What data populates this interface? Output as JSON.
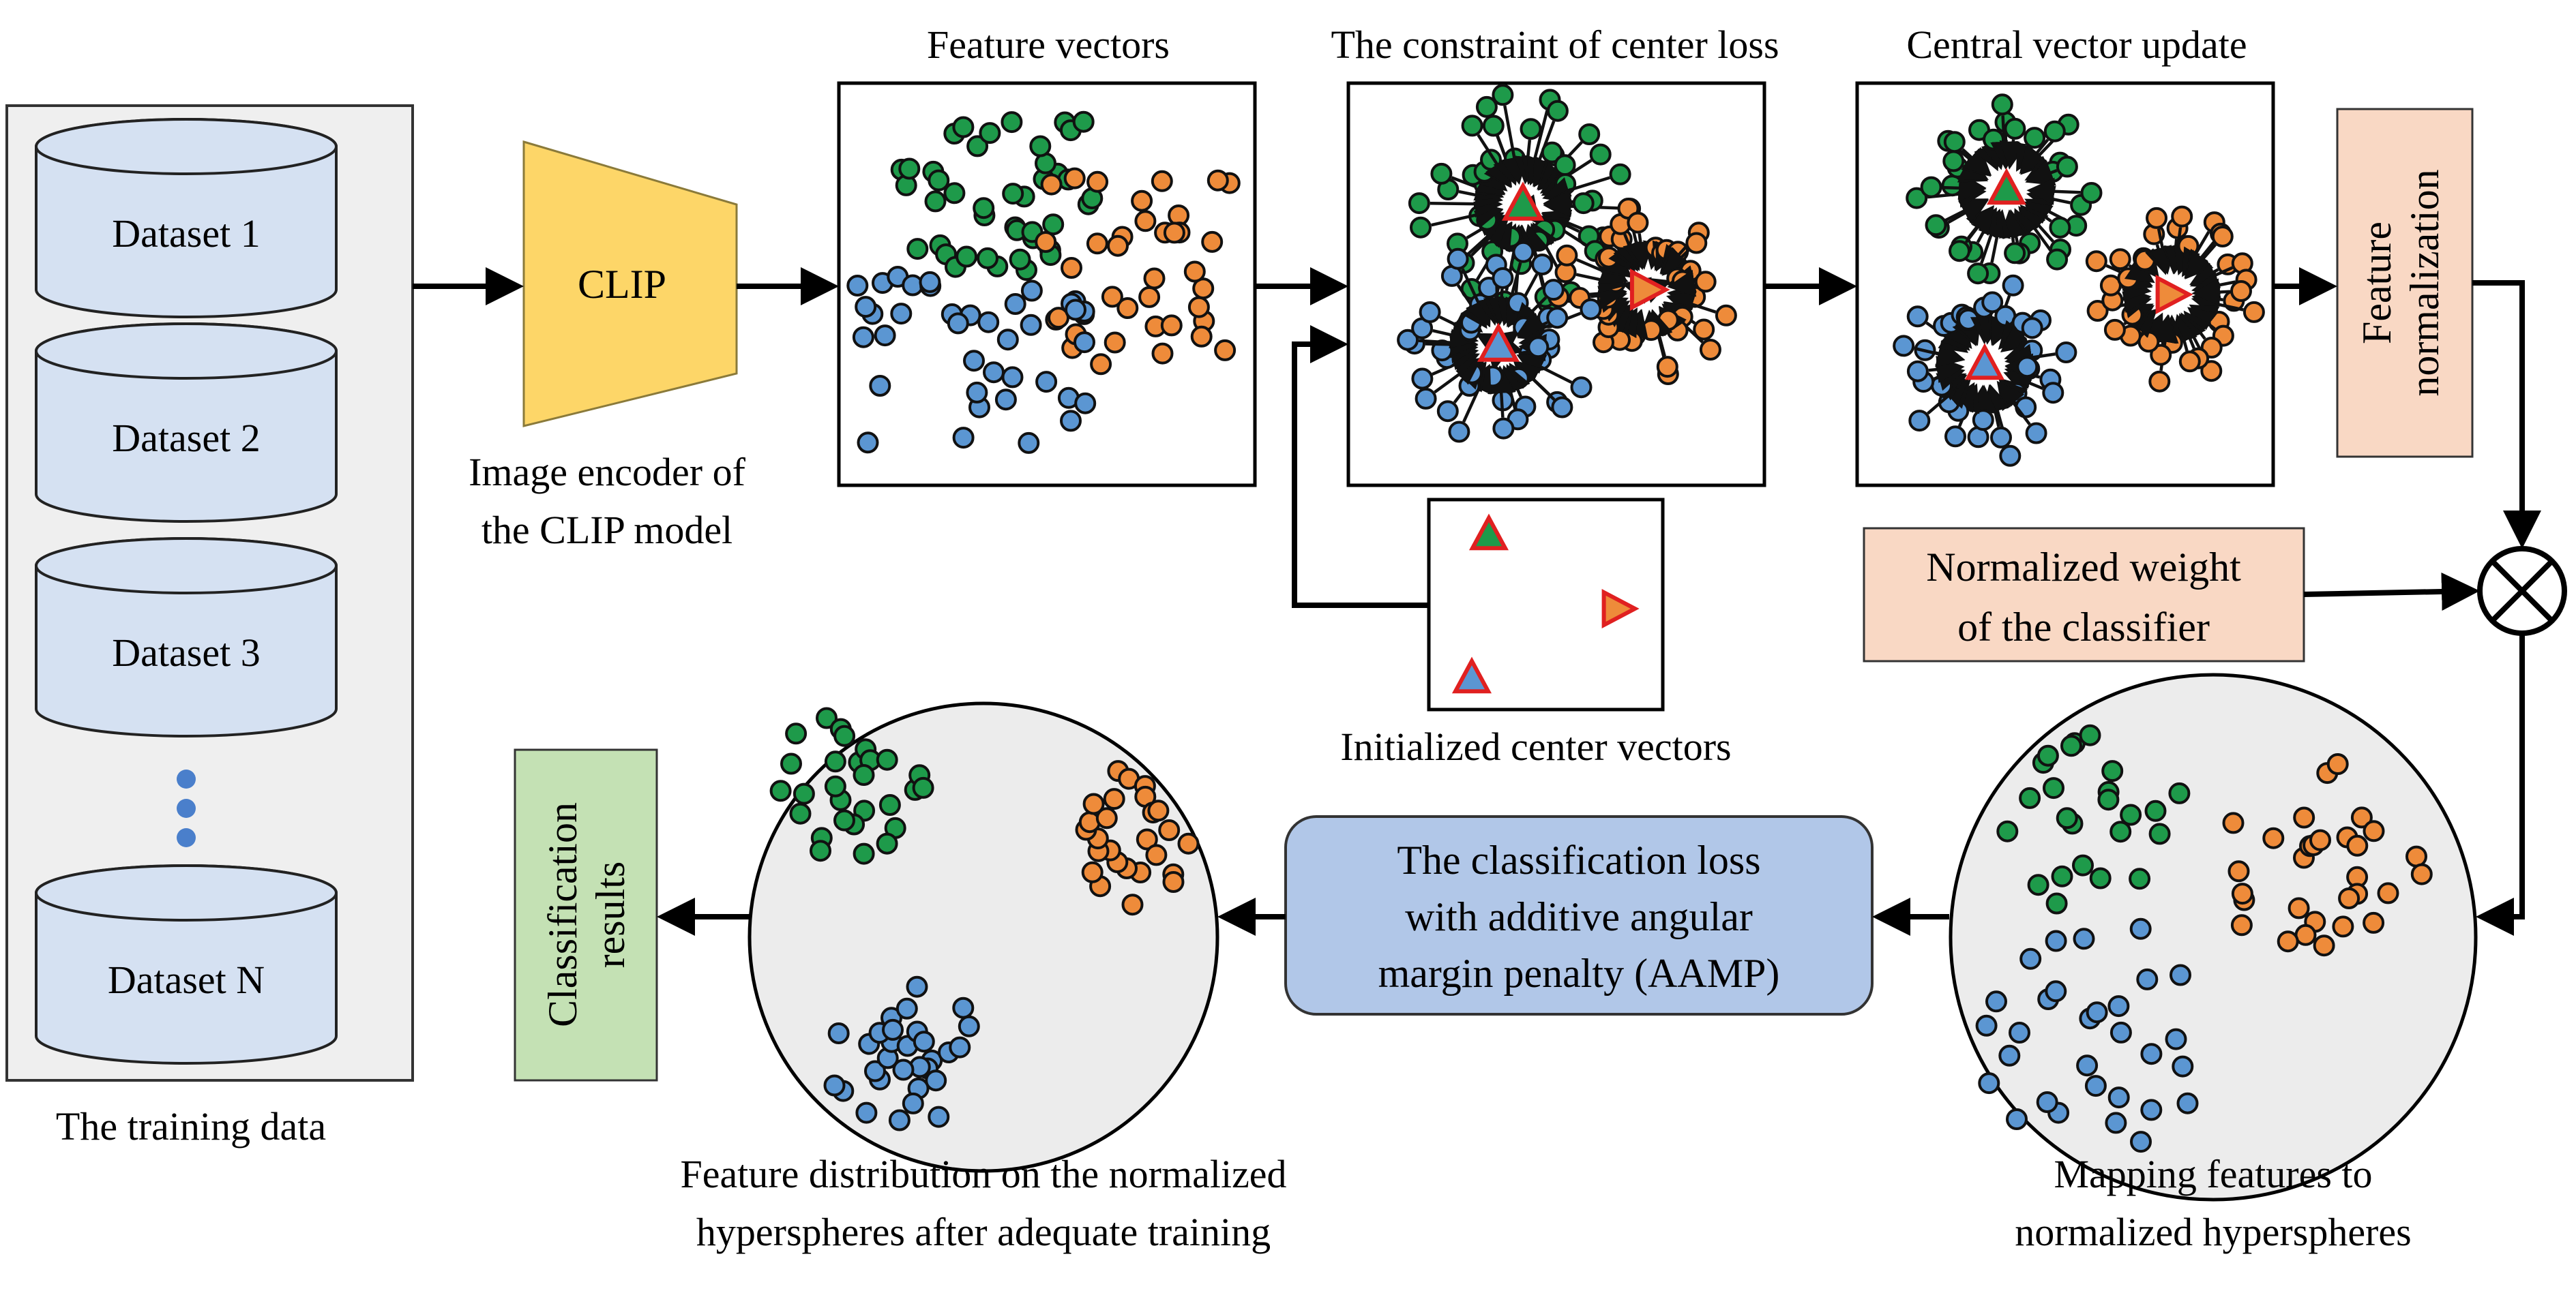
{
  "training_data": {
    "datasets": [
      "Dataset 1",
      "Dataset 2",
      "Dataset 3",
      "Dataset N"
    ],
    "caption": "The training data"
  },
  "encoder": {
    "label": "CLIP",
    "caption_line1": "Image encoder of",
    "caption_line2": "the CLIP model"
  },
  "panels": {
    "feature_vectors": "Feature vectors",
    "center_loss": "The constraint of center loss",
    "central_update": "Central vector update",
    "initialized_centers": "Initialized center vectors"
  },
  "feature_normalization": {
    "line1": "Feature",
    "line2": "normalization"
  },
  "normalized_weight": {
    "line1": "Normalized weight",
    "line2": "of the classifier"
  },
  "aamp": {
    "line1": "The classification loss",
    "line2": "with additive angular",
    "line3": "margin penalty (AAMP)"
  },
  "classification": {
    "line1": "Classification",
    "line2": "results"
  },
  "mapping_caption": {
    "line1": "Mapping features to",
    "line2": "normalized hyperspheres"
  },
  "distribution_caption": {
    "line1": "Feature distribution on the normalized",
    "line2": "hyperspheres after adequate training"
  },
  "colors": {
    "green": "#1e9a4a",
    "orange": "#ee8b3a",
    "blue": "#5b96d2",
    "center_outline": "#e02020",
    "clip": "#fdd668",
    "cylinder": "#d5e1f2",
    "peach": "#f9d8c4",
    "aamp_box": "#b1c7e8",
    "class_box": "#c4e1b4",
    "sphere": "#ececec",
    "panel_gray": "#efefef"
  },
  "icons": [
    "cylinder-icon",
    "ellipsis-dots-icon",
    "trapezoid-encoder-icon",
    "otimes-icon",
    "triangle-center-icon"
  ]
}
